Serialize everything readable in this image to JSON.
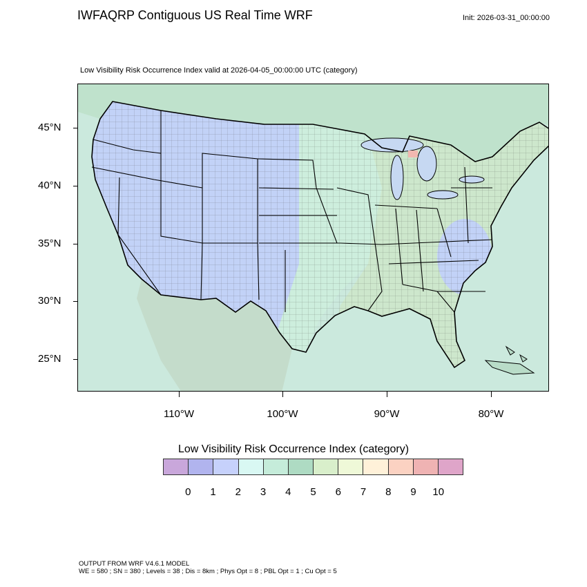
{
  "header": {
    "title": "IWFAQRP Contiguous US Real Time WRF",
    "init": "Init: 2026-03-31_00:00:00"
  },
  "map": {
    "title": "Low Visibility Risk Occurrence Index valid at 2026-04-05_00:00:00 UTC   (category)",
    "lat_labels": [
      "45°N",
      "40°N",
      "35°N",
      "30°N",
      "25°N"
    ],
    "lon_labels": [
      "110°W",
      "100°W",
      "90°W",
      "80°W"
    ],
    "colors": {
      "ocean": "#cbe9dd",
      "land_west": "#c2d2f7",
      "land_central": "#cdeedd",
      "land_east": "#cde7cc",
      "canada": "#bfe2cc",
      "mexico": "#c4dccb",
      "lakes": "#c6d8f2",
      "hotspot": "#f2b8b0"
    }
  },
  "legend": {
    "title": "Low Visibility Risk Occurrence Index  (category)",
    "labels": [
      "0",
      "1",
      "2",
      "3",
      "4",
      "5",
      "6",
      "7",
      "8",
      "9",
      "10"
    ],
    "colors": [
      "#c9a7db",
      "#b1b4ee",
      "#c6d1fb",
      "#d9f8f3",
      "#c5ecda",
      "#aedbc3",
      "#d9efcb",
      "#eff9d8",
      "#fff1d9",
      "#fbd2c2",
      "#efb3b3",
      "#dfa5c9"
    ]
  },
  "footer": {
    "line1": "OUTPUT FROM WRF V4.6.1 MODEL",
    "line2": "WE = 580 ; SN = 380 ; Levels = 38 ; Dis = 8km ; Phys Opt = 8 ; PBL Opt = 1 ; Cu Opt = 5"
  }
}
